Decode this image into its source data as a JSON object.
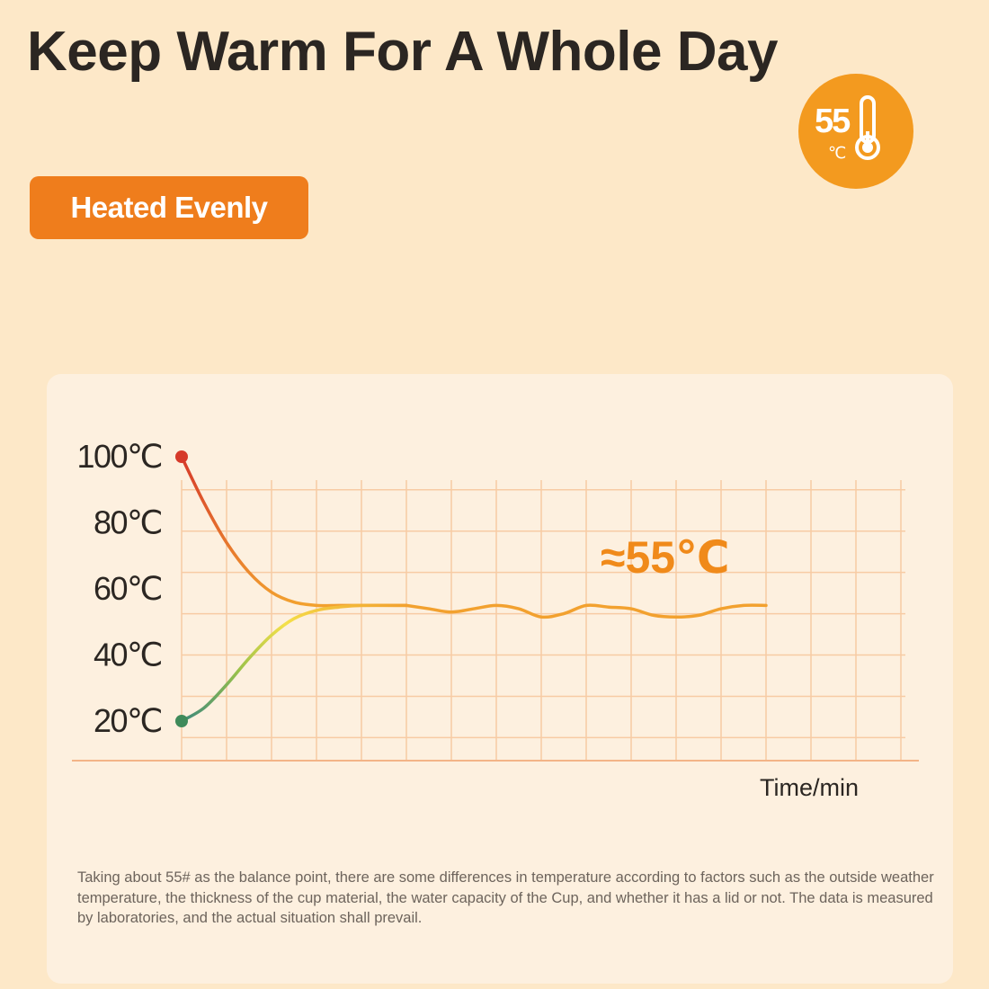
{
  "header": {
    "title": "Keep Warm For A Whole Day",
    "badge_value": "55",
    "badge_unit": "℃"
  },
  "pill": {
    "label": "Heated Evenly"
  },
  "note": {
    "text": "Taking about 55# as the balance point, there are some differences in temperature according to factors such as the outside weather temperature, the thickness of the cup material, the water capacity of the Cup, and whether it has a lid or not. The data is measured by laboratories, and the actual situation shall prevail."
  },
  "colors": {
    "background": "#fde8c8",
    "card": "#fdf0df",
    "accent_orange": "#ef7d1c",
    "badge_orange": "#f39a1f",
    "grid": "#f7cba4",
    "cooling_start": "#d63a2a",
    "heating_start": "#3f8a5a",
    "steady": "#f2a12f"
  },
  "chart_data": {
    "type": "line",
    "title": "",
    "xlabel": "Time/min",
    "ylabel": "",
    "y_ticks": [
      "100℃",
      "80℃",
      "60℃",
      "40℃",
      "20℃"
    ],
    "y_tick_values": [
      100,
      80,
      60,
      40,
      20
    ],
    "ylim": [
      10,
      105
    ],
    "xlim": [
      0,
      16
    ],
    "grid": true,
    "annotation": {
      "text": "≈55℃",
      "value": 55
    },
    "series": [
      {
        "role": "cooling",
        "x": [
          0,
          0.5,
          1,
          1.5,
          2,
          2.5,
          3,
          3.5,
          4,
          5
        ],
        "y": [
          100,
          86,
          74,
          65,
          59,
          56,
          55,
          55,
          55,
          55
        ]
      },
      {
        "role": "heating",
        "x": [
          0,
          0.5,
          1,
          1.5,
          2,
          2.5,
          3,
          3.5,
          4,
          5
        ],
        "y": [
          20,
          24,
          31,
          39,
          46,
          51,
          53.5,
          54.5,
          55,
          55
        ]
      },
      {
        "role": "steady",
        "x": [
          5,
          5.5,
          6,
          6.5,
          7,
          7.5,
          8,
          8.5,
          9,
          9.5,
          10,
          10.5,
          11,
          11.5,
          12,
          12.5,
          13
        ],
        "y": [
          55,
          54,
          53,
          54,
          55,
          54,
          51.5,
          52.5,
          55,
          54.5,
          54,
          52,
          51.5,
          52,
          54,
          55,
          55
        ]
      }
    ]
  }
}
